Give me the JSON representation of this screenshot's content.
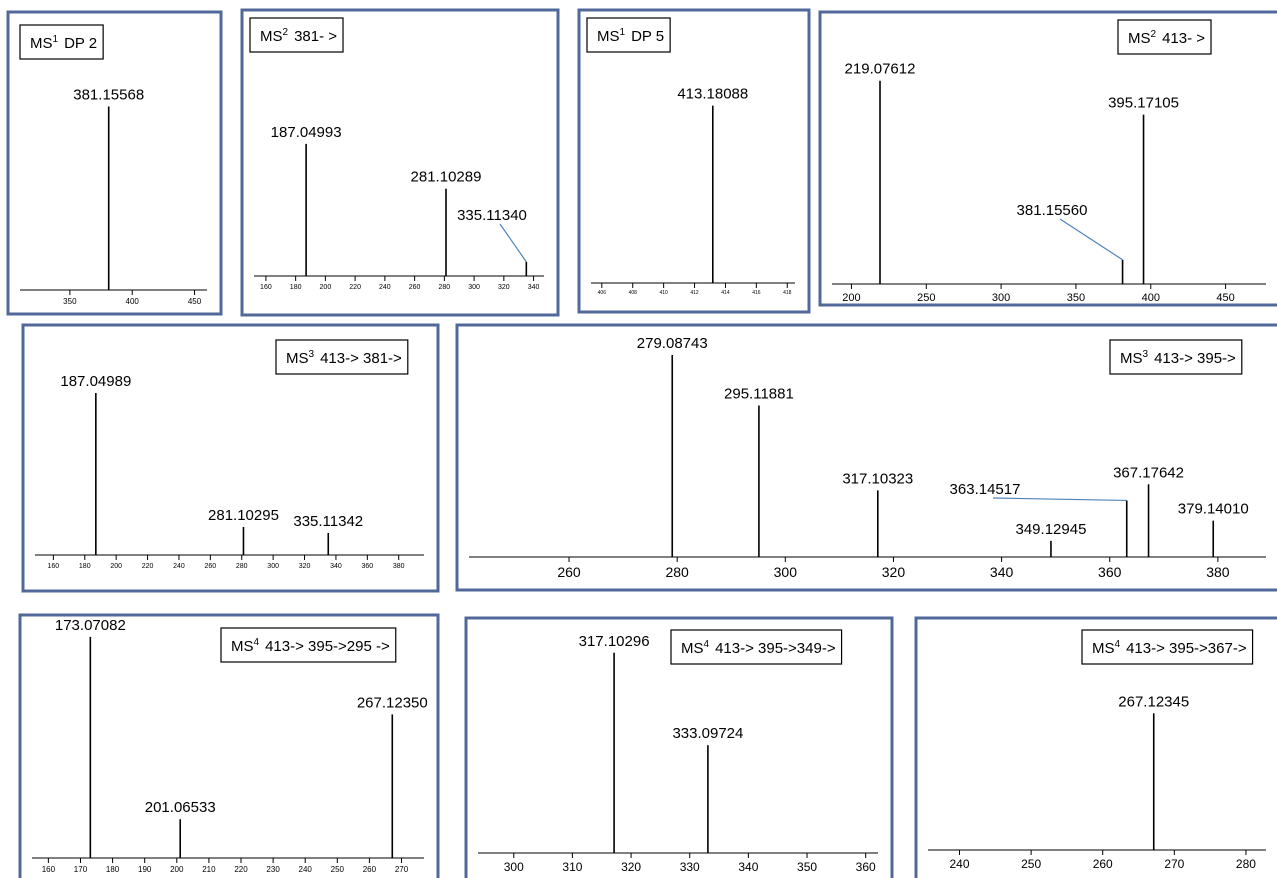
{
  "chart_data": [
    {
      "type": "spectrum",
      "title": [
        "MS",
        "1",
        "DP 2"
      ],
      "color": "#000000",
      "x": [
        381.15568
      ],
      "values": [
        74
      ],
      "xlim": [
        310,
        460
      ],
      "ylim": [
        0,
        100
      ],
      "xticks": [
        350,
        400,
        450
      ]
    },
    {
      "type": "spectrum",
      "title": [
        "MS",
        "2",
        "381- >"
      ],
      "color": "#000000",
      "x": [
        187.04993,
        281.10289,
        335.1134
      ],
      "value_labels": [
        "187.04993",
        "281.10289",
        "335.11340"
      ],
      "values": [
        56,
        37,
        6
      ],
      "xlim": [
        152,
        347
      ],
      "ylim": [
        0,
        100
      ],
      "xticks": [
        160,
        180,
        200,
        220,
        240,
        260,
        280,
        300,
        320,
        340
      ]
    },
    {
      "type": "spectrum",
      "title": [
        "MS",
        "1",
        "DP 5"
      ],
      "color": "#000000",
      "x": [
        413.18088
      ],
      "values": [
        73
      ],
      "xlim": [
        405.3,
        418.5
      ],
      "ylim": [
        0,
        100
      ],
      "xticks": [
        406,
        408,
        410,
        412,
        414,
        416,
        418
      ]
    },
    {
      "type": "spectrum",
      "title": [
        "MS",
        "2",
        "413- >"
      ],
      "color": "#000000",
      "x": [
        219.07612,
        381.1556,
        395.17105
      ],
      "value_labels": [
        "219.07612",
        "381.15560",
        "395.17105"
      ],
      "values": [
        84,
        10,
        70
      ],
      "xlim": [
        187,
        477
      ],
      "ylim": [
        0,
        100
      ],
      "xticks": [
        200,
        250,
        300,
        350,
        400,
        450
      ]
    },
    {
      "type": "spectrum",
      "title": [
        "MS",
        "3",
        "413-> 381->"
      ],
      "color": "#000000",
      "x": [
        187.04989,
        281.10295,
        335.11342
      ],
      "values": [
        81,
        14,
        11
      ],
      "xlim": [
        148.3,
        396.1
      ],
      "ylim": [
        0,
        100
      ],
      "xticks": [
        160,
        180,
        200,
        220,
        240,
        260,
        280,
        300,
        320,
        340,
        360,
        380
      ]
    },
    {
      "type": "spectrum",
      "title": [
        "MS",
        "3",
        "413-> 395->"
      ],
      "color": "#000000",
      "x": [
        279.08743,
        295.11881,
        317.10323,
        349.12945,
        363.14517,
        367.17642,
        379.1401
      ],
      "value_labels": [
        "279.08743",
        "295.11881",
        "317.10323",
        "349.12945",
        "363.14517",
        "367.17642",
        "379.14010"
      ],
      "values": [
        100,
        75,
        33,
        8,
        28,
        36,
        18
      ],
      "xlim": [
        241.5,
        388.9
      ],
      "ylim": [
        0,
        100
      ],
      "xticks": [
        260,
        280,
        300,
        320,
        340,
        360,
        380
      ]
    },
    {
      "type": "spectrum",
      "title": [
        "MS",
        "4",
        "413-> 395->295 ->"
      ],
      "color": "#000000",
      "x": [
        173.07082,
        201.06533,
        267.1235
      ],
      "value_labels": [
        "173.07082",
        "201.06533",
        "267.12350"
      ],
      "values": [
        97,
        17,
        63
      ],
      "xlim": [
        154.9,
        277
      ],
      "ylim": [
        0,
        100
      ],
      "xticks": [
        160,
        170,
        180,
        190,
        200,
        210,
        220,
        230,
        240,
        250,
        260,
        270
      ]
    },
    {
      "type": "spectrum",
      "title": [
        "MS",
        "4",
        "413-> 395->349->"
      ],
      "color": "#000000",
      "x": [
        317.10296,
        333.09724
      ],
      "values": [
        91,
        49
      ],
      "xlim": [
        293.9,
        362.1
      ],
      "ylim": [
        0,
        100
      ],
      "xticks": [
        300,
        310,
        320,
        330,
        340,
        350,
        360
      ]
    },
    {
      "type": "spectrum",
      "title": [
        "MS",
        "4",
        "413-> 395->367->"
      ],
      "color": "#000000",
      "x": [
        267.12345
      ],
      "values": [
        63
      ],
      "xlim": [
        235.6,
        282.8
      ],
      "ylim": [
        0,
        100
      ],
      "xticks": [
        240,
        250,
        260,
        270,
        280
      ]
    }
  ]
}
